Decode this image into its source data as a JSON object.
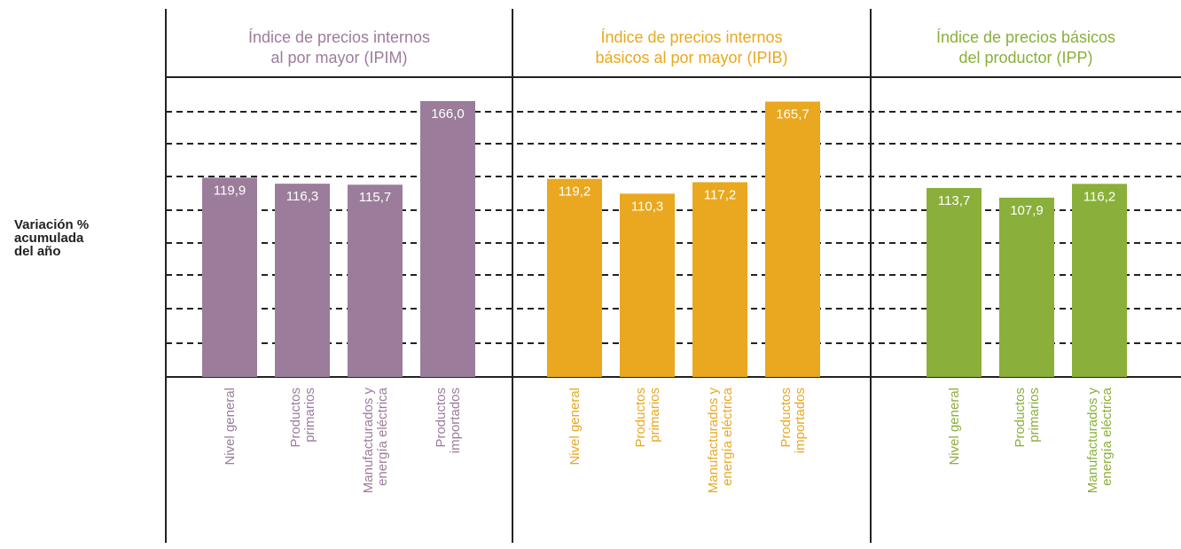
{
  "chart_data": {
    "type": "bar",
    "ylabel": [
      "Variación %",
      "acumulada",
      "del año"
    ],
    "ylim": [
      0,
      180
    ],
    "grid": true,
    "panels": [
      {
        "title": [
          "Índice de precios internos",
          "al por mayor (IPIM)"
        ],
        "color": "#9b7d9b",
        "categories": [
          [
            "Nivel general"
          ],
          [
            "Productos",
            "primarios"
          ],
          [
            "Manufacturados y",
            "energía eléctrica"
          ],
          [
            "Productos",
            "importados"
          ]
        ],
        "values": [
          119.9,
          116.3,
          115.7,
          166.0
        ],
        "labels": [
          "119,9",
          "116,3",
          "115,7",
          "166,0"
        ]
      },
      {
        "title": [
          "Índice de precios internos",
          "básicos al por mayor (IPIB)"
        ],
        "color": "#e9a81f",
        "categories": [
          [
            "Nivel general"
          ],
          [
            "Productos",
            "primarios"
          ],
          [
            "Manufacturados y",
            "energía eléctrica"
          ],
          [
            "Productos",
            "importados"
          ]
        ],
        "values": [
          119.2,
          110.3,
          117.2,
          165.7
        ],
        "labels": [
          "119,2",
          "110,3",
          "117,2",
          "165,7"
        ]
      },
      {
        "title": [
          "Índice de precios básicos",
          "del productor (IPP)"
        ],
        "color": "#8aaf3a",
        "categories": [
          [
            "Nivel general"
          ],
          [
            "Productos",
            "primarios"
          ],
          [
            "Manufacturados y",
            "energía eléctrica"
          ]
        ],
        "values": [
          113.7,
          107.9,
          116.2
        ],
        "labels": [
          "113,7",
          "107,9",
          "116,2"
        ]
      }
    ]
  }
}
